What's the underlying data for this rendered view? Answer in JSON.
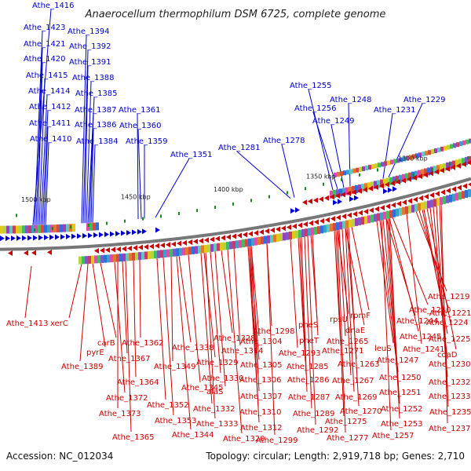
{
  "title": "Anaerocellum thermophilum DSM 6725, complete genome",
  "footer": {
    "accession": "Accession: NC_012034",
    "summary": "Topology: circular; Length: 2,919,718 bp; Genes: 2,710"
  },
  "ticks": [
    "1500 kbp",
    "1450 kbp",
    "1400 kbp",
    "1350 kbp",
    "1300 kbp"
  ],
  "forward_genes": {
    "color": "#0000cc",
    "labels": [
      "Athe_1416",
      "Athe_1423",
      "Athe_1421",
      "Athe_1420",
      "Athe_1415",
      "Athe_1414",
      "Athe_1412",
      "Athe_1411",
      "Athe_1410",
      "Athe_1394",
      "Athe_1392",
      "Athe_1391",
      "Athe_1388",
      "Athe_1385",
      "Athe_1387",
      "Athe_1386",
      "Athe_1384",
      "Athe_1361",
      "Athe_1360",
      "Athe_1359",
      "Athe_1351",
      "Athe_1281",
      "Athe_1278",
      "Athe_1255",
      "Athe_1256",
      "Athe_1249",
      "Athe_1248",
      "Athe_1231",
      "Athe_1229"
    ]
  },
  "reverse_genes": {
    "color": "#cc0000",
    "labels": [
      "Athe_1413",
      "xerC",
      "Athe_1389",
      "pyrE",
      "carB",
      "Athe_1362",
      "Athe_1367",
      "Athe_1364",
      "Athe_1372",
      "Athe_1373",
      "Athe_1365",
      "Athe_1338",
      "Athe_1349",
      "Athe_1345",
      "Athe_1352",
      "Athe_1353",
      "Athe_1344",
      "Athe_1328",
      "Athe_1329",
      "Athe_1330",
      "alaS",
      "Athe_1332",
      "Athe_1333",
      "Athe_1320",
      "Athe_1298",
      "Athe_1304",
      "Athe_1314",
      "Athe_1305",
      "Athe_1306",
      "Athe_1307",
      "Athe_1310",
      "Athe_1312",
      "Athe_1299",
      "pheS",
      "pheT",
      "Athe_1293",
      "Athe_1285",
      "Athe_1286",
      "Athe_1287",
      "Athe_1289",
      "Athe_1292",
      "rpsU",
      "rpmF",
      "dnaE",
      "Athe_1265",
      "Athe_1271",
      "Athe_1263",
      "Athe_1267",
      "Athe_1269",
      "Athe_1270",
      "Athe_1275",
      "Athe_1277",
      "Athe_1240",
      "Athe_1244",
      "Athe_1245",
      "leuS",
      "Athe_1247",
      "Athe_1250",
      "Athe_1251",
      "Athe_1252",
      "Athe_1253",
      "Athe_1257",
      "Athe_1219",
      "Athe_1221",
      "Athe_1224",
      "Athe_1225",
      "Athe_1241",
      "coaD",
      "Athe_1230",
      "Athe_1232",
      "Athe_1233",
      "Athe_1235",
      "Athe_1237"
    ]
  }
}
